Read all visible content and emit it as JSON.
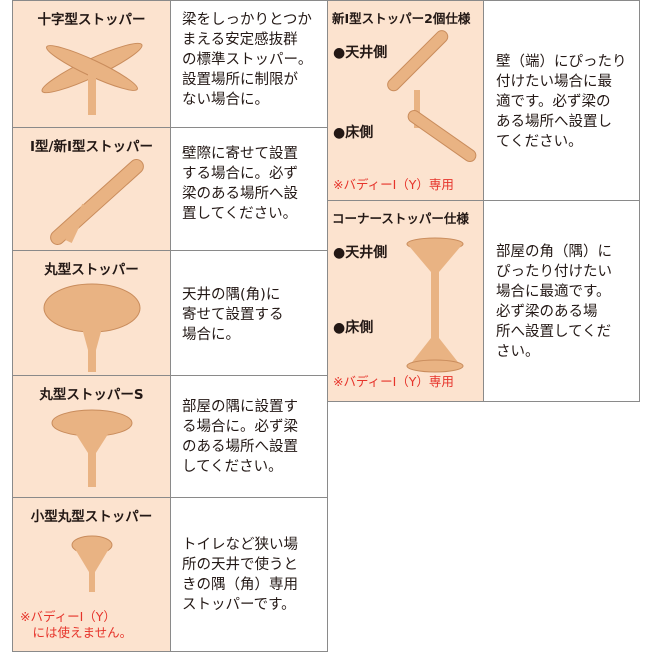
{
  "left": {
    "items": [
      {
        "title": "十字型ストッパー",
        "desc": [
          "梁をしっかりとつか",
          "まえる安定感抜群",
          "の標準ストッパー。",
          "設置場所に制限が",
          "ない場合に。"
        ]
      },
      {
        "title": "I型/新I型ストッパー",
        "desc": [
          "壁際に寄せて設置",
          "する場合に。必ず",
          "梁のある場所へ設",
          "置してください。"
        ]
      },
      {
        "title": "丸型ストッパー",
        "desc": [
          "天井の隅(角)に",
          "寄せて設置する",
          "場合に。"
        ]
      },
      {
        "title": "丸型ストッパーS",
        "desc": [
          "部屋の隅に設置す",
          "る場合に。必ず梁",
          "のある場所へ設置",
          "してください。"
        ]
      },
      {
        "title": "小型丸型ストッパー",
        "desc": [
          "トイレなど狭い場",
          "所の天井で使うと",
          "きの隅（角）専用",
          "ストッパーです。"
        ],
        "note": [
          "※バディーI（Y）",
          "　には使えません。"
        ]
      }
    ]
  },
  "right": {
    "items": [
      {
        "title": "新I型ストッパー2個仕様",
        "top_label": "●天井側",
        "bottom_label": "●床側",
        "note": "※バディーI（Y）専用",
        "desc": [
          "壁（端）にぴったり",
          "付けたい場合に最",
          "適です。必ず梁の",
          "ある場所へ設置し",
          "てください。"
        ]
      },
      {
        "title": "コーナーストッパー仕様",
        "top_label": "●天井側",
        "bottom_label": "●床側",
        "note": "※バディーI（Y）専用",
        "desc": [
          "部屋の角（隅）に",
          "ぴったり付けたい",
          "場合に最適です。",
          "必ず梁のある場",
          "所へ設置してくだ",
          "さい。"
        ]
      }
    ]
  }
}
